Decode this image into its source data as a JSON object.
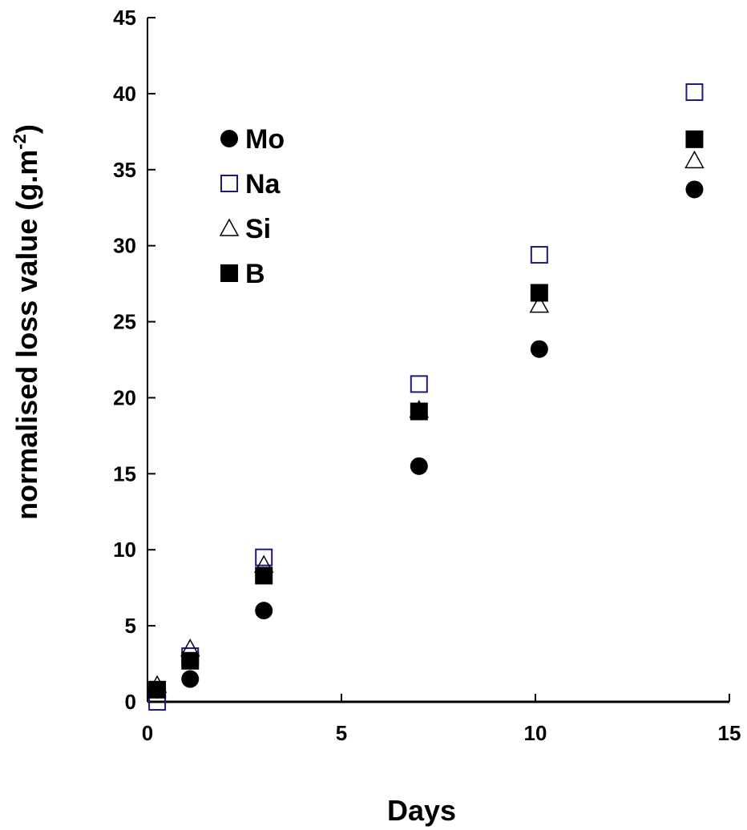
{
  "chart_data": {
    "type": "scatter",
    "title": "",
    "xlabel": "Days",
    "ylabel": "normalised loss value  (g.m",
    "ylabel_sup": "-2",
    "ylabel_close": ")",
    "xlim": [
      0,
      15
    ],
    "ylim": [
      0,
      45
    ],
    "xticks": [
      0,
      5,
      10,
      15
    ],
    "yticks": [
      0,
      5,
      10,
      15,
      20,
      25,
      30,
      35,
      40,
      45
    ],
    "grid": false,
    "legend_position": "top-left",
    "series": [
      {
        "name": "Mo",
        "marker": "filled-circle",
        "color": "#000000",
        "x": [
          0.25,
          1.1,
          3.0,
          7.0,
          10.1,
          14.1
        ],
        "y": [
          0.8,
          1.5,
          6.0,
          15.5,
          23.2,
          33.7
        ]
      },
      {
        "name": "Na",
        "marker": "open-square",
        "color": "#1a1a80",
        "x": [
          0.25,
          1.1,
          3.0,
          7.0,
          10.1,
          14.1
        ],
        "y": [
          0.0,
          3.0,
          9.5,
          20.9,
          29.4,
          40.1
        ]
      },
      {
        "name": "Si",
        "marker": "open-triangle",
        "color": "#000000",
        "x": [
          0.25,
          1.1,
          3.0,
          7.0,
          10.1,
          14.1
        ],
        "y": [
          1.1,
          3.5,
          9.0,
          19.2,
          26.1,
          35.6
        ]
      },
      {
        "name": "B",
        "marker": "filled-square",
        "color": "#000000",
        "x": [
          0.25,
          1.1,
          3.0,
          7.0,
          10.1,
          14.1
        ],
        "y": [
          0.8,
          2.7,
          8.3,
          19.1,
          26.9,
          37.0
        ]
      }
    ]
  }
}
